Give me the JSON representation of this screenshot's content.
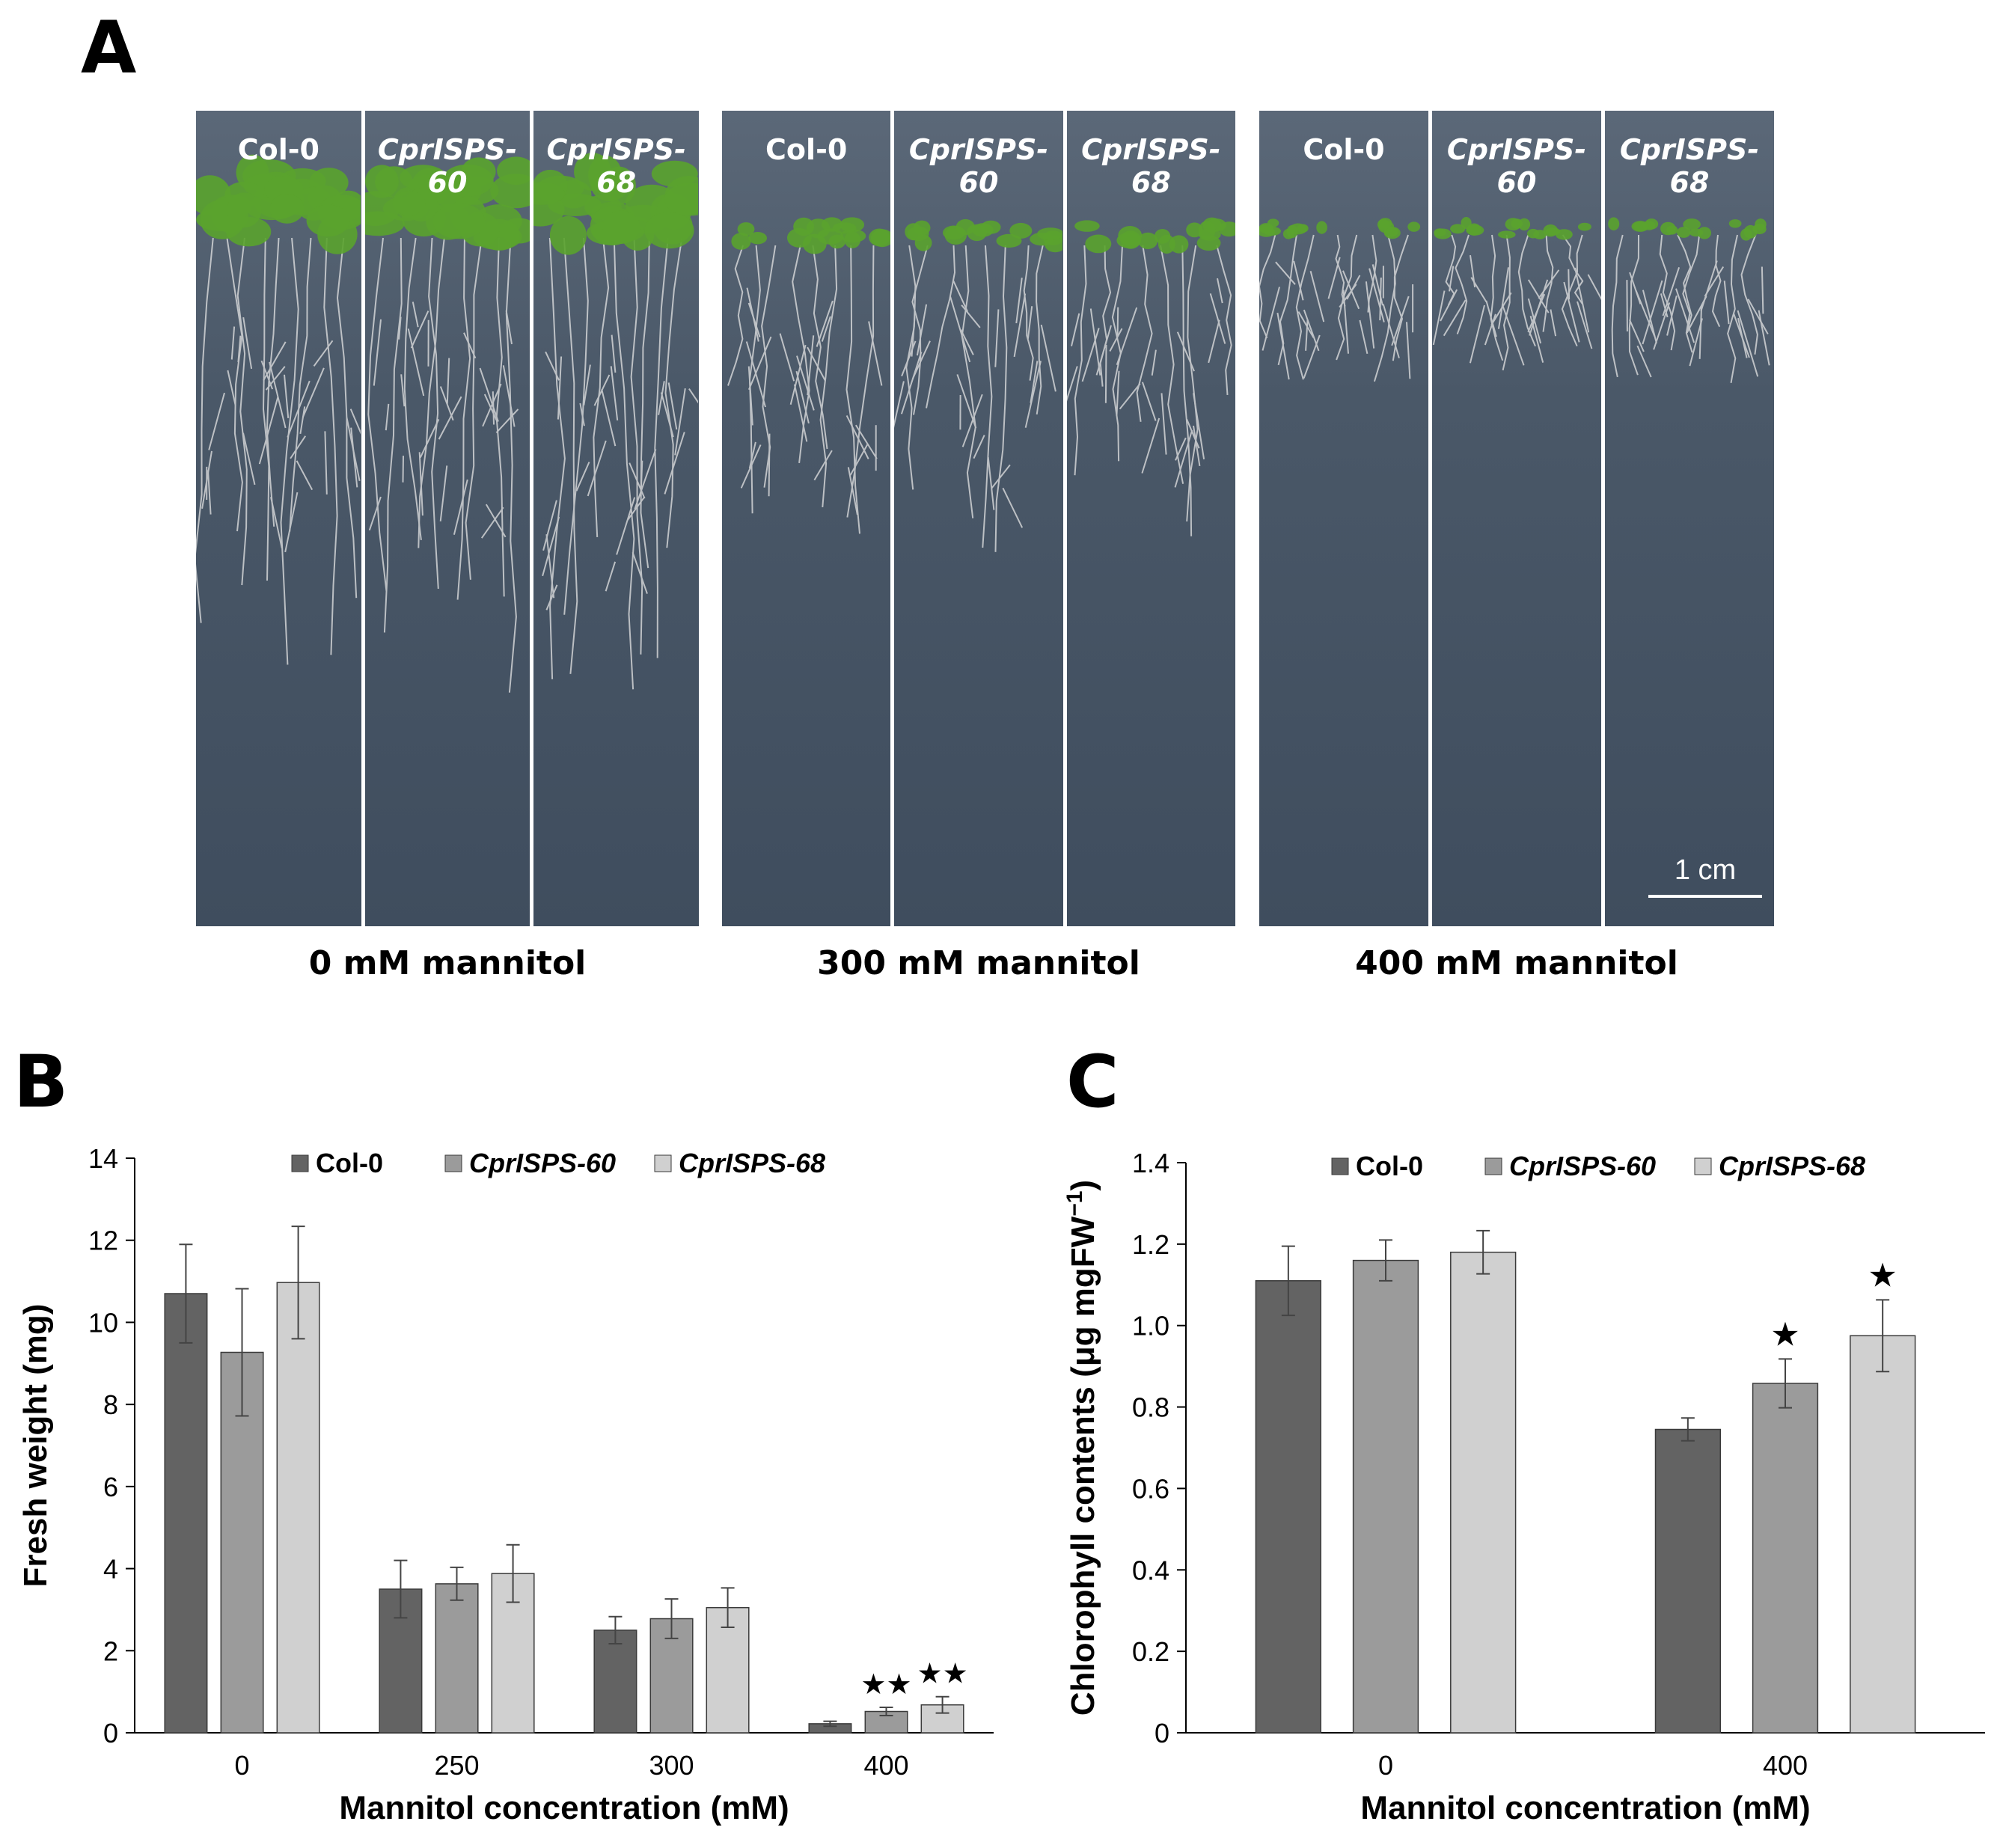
{
  "panel_labels": {
    "a": "A",
    "b": "B",
    "c": "C"
  },
  "photos": {
    "groups": [
      {
        "caption": "0 mM mannitol",
        "strips": [
          "Col-0",
          "CprISPS-60",
          "CprISPS-68"
        ]
      },
      {
        "caption": "300 mM mannitol",
        "strips": [
          "Col-0",
          "CprISPS-60",
          "CprISPS-68"
        ]
      },
      {
        "caption": "400 mM mannitol",
        "strips": [
          "Col-0",
          "CprISPS-60",
          "CprISPS-68"
        ]
      }
    ],
    "scale_bar": "1 cm"
  },
  "colors": {
    "col0": "#636363",
    "isps60": "#9b9b9b",
    "isps68": "#d0d0d0",
    "shoot": "#5aa32e",
    "root": "#e4e4e4"
  },
  "chart_data": [
    {
      "id": "B",
      "type": "bar",
      "categories": [
        "0",
        "250",
        "300",
        "400"
      ],
      "series": [
        {
          "name": "Col-0",
          "values": [
            10.7,
            3.5,
            2.5,
            0.22
          ],
          "errors": [
            1.2,
            0.7,
            0.33,
            0.06
          ]
        },
        {
          "name": "CprISPS-60",
          "values": [
            9.27,
            3.63,
            2.78,
            0.52
          ],
          "errors": [
            1.55,
            0.4,
            0.48,
            0.1
          ]
        },
        {
          "name": "CprISPS-68",
          "values": [
            10.97,
            3.88,
            3.05,
            0.68
          ],
          "errors": [
            1.37,
            0.7,
            0.48,
            0.2
          ]
        }
      ],
      "annotations": [
        {
          "category": "400",
          "series": "CprISPS-60",
          "text": "★★"
        },
        {
          "category": "400",
          "series": "CprISPS-68",
          "text": "★★"
        }
      ],
      "xlabel": "Mannitol concentration (mM)",
      "ylabel": "Fresh weight (mg)",
      "ylim": [
        0,
        14
      ],
      "yticks": [
        "0",
        "2",
        "4",
        "6",
        "8",
        "10",
        "12",
        "14"
      ],
      "legend": "top"
    },
    {
      "id": "C",
      "type": "bar",
      "categories": [
        "0",
        "400"
      ],
      "series": [
        {
          "name": "Col-0",
          "values": [
            1.11,
            0.745
          ],
          "errors": [
            0.085,
            0.028
          ]
        },
        {
          "name": "CprISPS-60",
          "values": [
            1.16,
            0.858
          ],
          "errors": [
            0.05,
            0.06
          ]
        },
        {
          "name": "CprISPS-68",
          "values": [
            1.18,
            0.975
          ],
          "errors": [
            0.053,
            0.088
          ]
        }
      ],
      "annotations": [
        {
          "category": "400",
          "series": "CprISPS-60",
          "text": "★"
        },
        {
          "category": "400",
          "series": "CprISPS-68",
          "text": "★"
        }
      ],
      "xlabel": "Mannitol concentration (mM)",
      "ylabel": "Chlorophyll contents (μg mgFW",
      "ylabel_sup": "−1",
      "ylabel_close": ")",
      "ylim": [
        0,
        1.4
      ],
      "yticks": [
        "0",
        "0.2",
        "0.4",
        "0.6",
        "0.8",
        "1.0",
        "1.2",
        "1.4"
      ],
      "legend": "top"
    }
  ]
}
